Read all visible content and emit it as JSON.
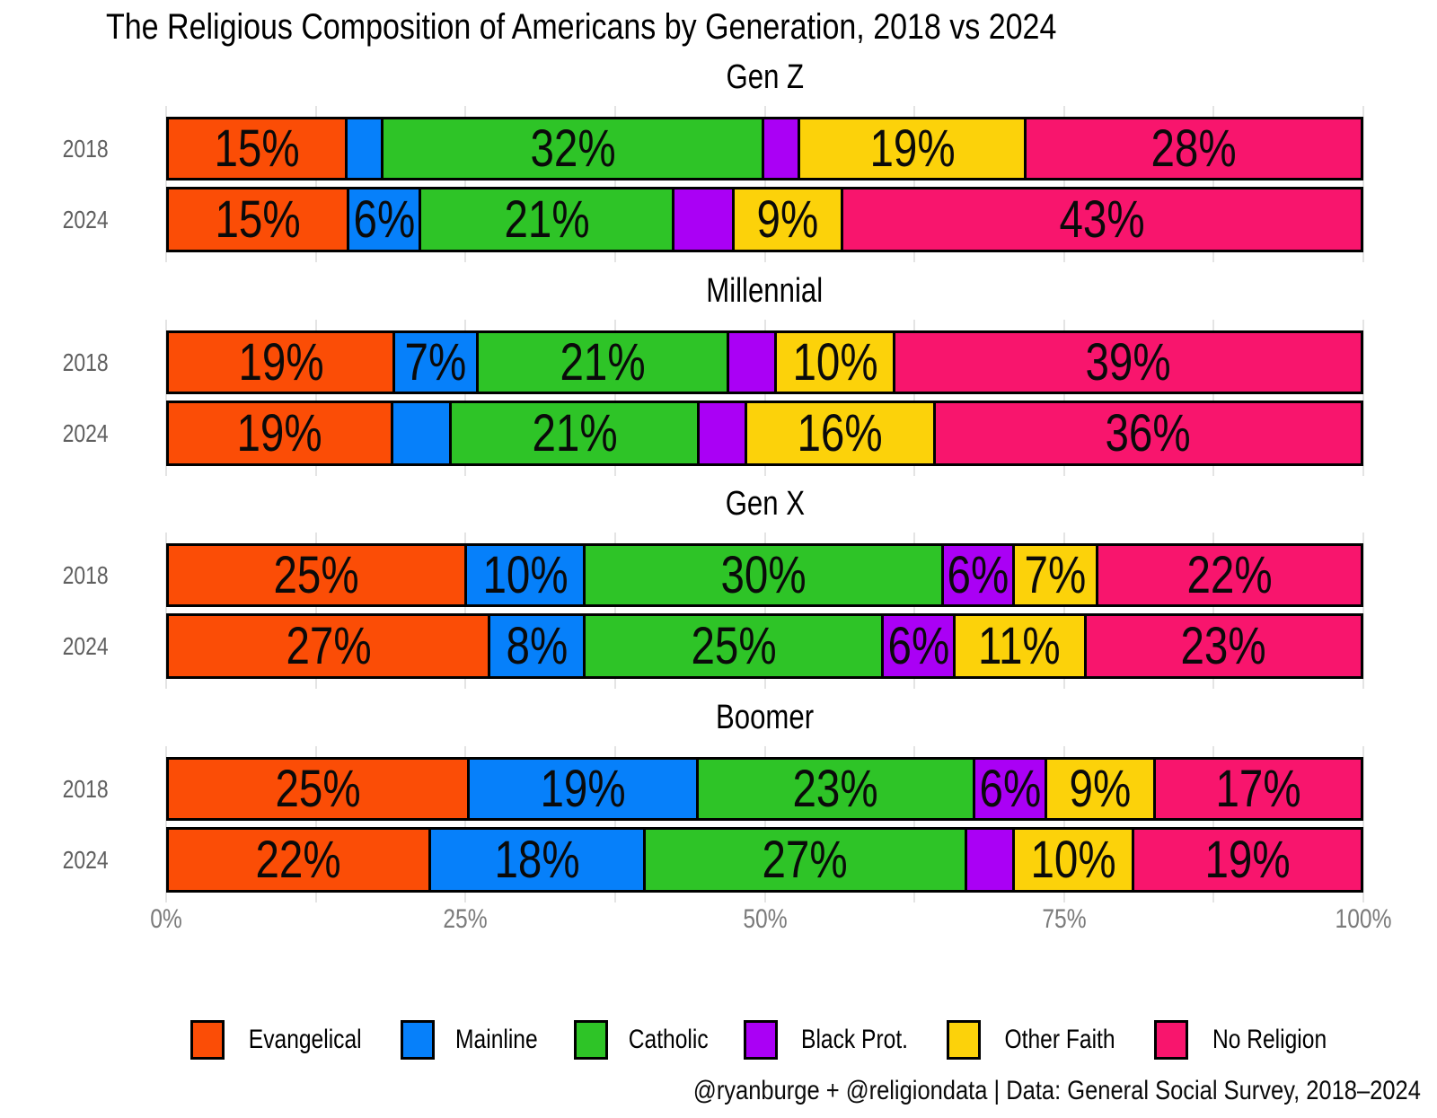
{
  "credit": "@ryanburge + @religiondata | Data: General Social Survey, 2018–2024",
  "chart_data": {
    "type": "bar",
    "variant": "stacked-horizontal-percent",
    "title": "The Religious Composition of Americans by Generation, 2018 vs 2024",
    "x_axis": {
      "range": [
        0,
        100
      ],
      "tick_labels": [
        "0%",
        "25%",
        "50%",
        "75%",
        "100%"
      ],
      "tick_positions": [
        0,
        25,
        50,
        75,
        100
      ],
      "minor_grid_step_pct": 12.5,
      "grid": true
    },
    "series": [
      {
        "name": "Evangelical",
        "color": "#FB4D06"
      },
      {
        "name": "Mainline",
        "color": "#0680FA"
      },
      {
        "name": "Catholic",
        "color": "#2EC427"
      },
      {
        "name": "Black Prot.",
        "color": "#AA00F5"
      },
      {
        "name": "Other Faith",
        "color": "#FCD20A"
      },
      {
        "name": "No Religion",
        "color": "#F8156D"
      }
    ],
    "facets": [
      {
        "name": "Gen Z",
        "rows": [
          {
            "year": "2018",
            "values": [
              15,
              3,
              32,
              3,
              19,
              28
            ],
            "labels": [
              "15%",
              "",
              "32%",
              "",
              "19%",
              "28%"
            ]
          },
          {
            "year": "2024",
            "values": [
              15,
              6,
              21,
              5,
              9,
              43
            ],
            "labels": [
              "15%",
              "6%",
              "21%",
              "",
              "9%",
              "43%"
            ]
          }
        ]
      },
      {
        "name": "Millennial",
        "rows": [
          {
            "year": "2018",
            "values": [
              19,
              7,
              21,
              4,
              10,
              39
            ],
            "labels": [
              "19%",
              "7%",
              "21%",
              "",
              "10%",
              "39%"
            ]
          },
          {
            "year": "2024",
            "values": [
              19,
              5,
              21,
              4,
              16,
              36
            ],
            "labels": [
              "19%",
              "",
              "21%",
              "",
              "16%",
              "36%"
            ]
          }
        ]
      },
      {
        "name": "Gen X",
        "rows": [
          {
            "year": "2018",
            "values": [
              25,
              10,
              30,
              6,
              7,
              22
            ],
            "labels": [
              "25%",
              "10%",
              "30%",
              "6%",
              "7%",
              "22%"
            ]
          },
          {
            "year": "2024",
            "values": [
              27,
              8,
              25,
              6,
              11,
              23
            ],
            "labels": [
              "27%",
              "8%",
              "25%",
              "6%",
              "11%",
              "23%"
            ]
          }
        ]
      },
      {
        "name": "Boomer",
        "rows": [
          {
            "year": "2018",
            "values": [
              25,
              19,
              23,
              6,
              9,
              17
            ],
            "labels": [
              "25%",
              "19%",
              "23%",
              "6%",
              "9%",
              "17%"
            ]
          },
          {
            "year": "2024",
            "values": [
              22,
              18,
              27,
              4,
              10,
              19
            ],
            "labels": [
              "22%",
              "18%",
              "27%",
              "",
              "10%",
              "19%"
            ]
          }
        ]
      }
    ],
    "legend": {
      "position": "bottom-center",
      "labels": [
        "Evangelical",
        "Mainline",
        "Catholic",
        "Black Prot.",
        "Other Faith",
        "No Religion"
      ]
    }
  }
}
